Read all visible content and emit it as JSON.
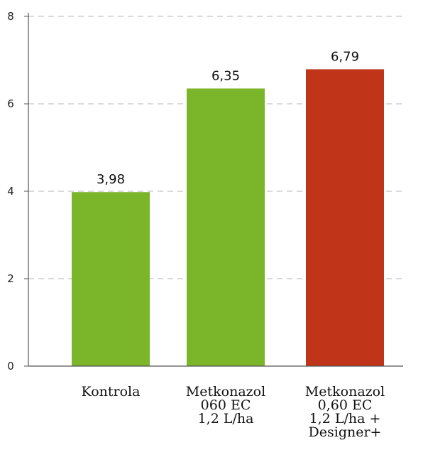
{
  "chart_data": {
    "type": "bar",
    "categories": [
      [
        "Kontrola"
      ],
      [
        "Metkonazol",
        "060 EC",
        "1,2 L/ha"
      ],
      [
        "Metkonazol",
        "0,60 EC",
        "1,2 L/ha +",
        "Designer+"
      ]
    ],
    "values": [
      3.98,
      6.35,
      6.79
    ],
    "data_labels": [
      "3,98",
      "6,35",
      "6,79"
    ],
    "bar_colors": [
      "#7ab52a",
      "#7ab52a",
      "#c0341a"
    ],
    "ylim": [
      0,
      8
    ],
    "yticks": [
      0,
      2,
      4,
      6,
      8
    ],
    "ytick_labels": [
      "0",
      "2",
      "4",
      "6",
      "8"
    ],
    "grid": true,
    "grid_style": "dashed",
    "title": "",
    "xlabel": "",
    "ylabel": ""
  }
}
